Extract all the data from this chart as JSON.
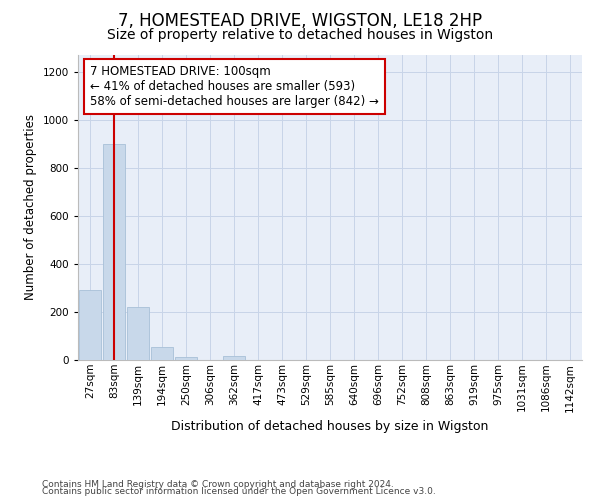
{
  "title1": "7, HOMESTEAD DRIVE, WIGSTON, LE18 2HP",
  "title2": "Size of property relative to detached houses in Wigston",
  "xlabel": "Distribution of detached houses by size in Wigston",
  "ylabel": "Number of detached properties",
  "bin_labels": [
    "27sqm",
    "83sqm",
    "139sqm",
    "194sqm",
    "250sqm",
    "306sqm",
    "362sqm",
    "417sqm",
    "473sqm",
    "529sqm",
    "585sqm",
    "640sqm",
    "696sqm",
    "752sqm",
    "808sqm",
    "863sqm",
    "919sqm",
    "975sqm",
    "1031sqm",
    "1086sqm",
    "1142sqm"
  ],
  "bar_heights": [
    290,
    900,
    220,
    55,
    12,
    0,
    18,
    0,
    0,
    0,
    0,
    0,
    0,
    0,
    0,
    0,
    0,
    0,
    0,
    0,
    0
  ],
  "bar_color": "#c8d8ea",
  "bar_edge_color": "#a8c0d8",
  "vline_x": 1.0,
  "vline_color": "#cc0000",
  "annotation_text": "7 HOMESTEAD DRIVE: 100sqm\n← 41% of detached houses are smaller (593)\n58% of semi-detached houses are larger (842) →",
  "annotation_box_facecolor": "#ffffff",
  "annotation_box_edgecolor": "#cc0000",
  "ylim": [
    0,
    1270
  ],
  "yticks": [
    0,
    200,
    400,
    600,
    800,
    1000,
    1200
  ],
  "grid_color": "#c8d4e8",
  "background_color": "#e8eef8",
  "footer1": "Contains HM Land Registry data © Crown copyright and database right 2024.",
  "footer2": "Contains public sector information licensed under the Open Government Licence v3.0.",
  "title1_fontsize": 12,
  "title2_fontsize": 10,
  "xlabel_fontsize": 9,
  "ylabel_fontsize": 8.5,
  "tick_fontsize": 7.5,
  "annotation_fontsize": 8.5,
  "footer_fontsize": 6.5
}
